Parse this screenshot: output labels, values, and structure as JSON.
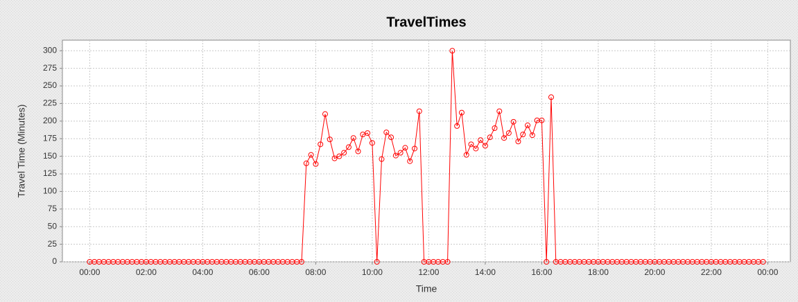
{
  "chart_data": {
    "type": "line",
    "title": "TravelTimes",
    "x_label": "Time",
    "y_label": "Travel Time (Minutes)",
    "x": [
      0,
      10,
      20,
      30,
      40,
      50,
      60,
      70,
      80,
      90,
      100,
      110,
      120,
      130,
      140,
      150,
      160,
      170,
      180,
      190,
      200,
      210,
      220,
      230,
      240,
      250,
      260,
      270,
      280,
      290,
      300,
      310,
      320,
      330,
      340,
      350,
      360,
      370,
      380,
      390,
      400,
      410,
      420,
      430,
      440,
      450,
      460,
      470,
      480,
      490,
      500,
      510,
      520,
      530,
      540,
      550,
      560,
      570,
      580,
      590,
      600,
      610,
      620,
      630,
      640,
      650,
      660,
      670,
      680,
      690,
      700,
      710,
      720,
      730,
      740,
      750,
      760,
      770,
      780,
      790,
      800,
      810,
      820,
      830,
      840,
      850,
      860,
      870,
      880,
      890,
      900,
      910,
      920,
      930,
      940,
      950,
      960,
      970,
      980,
      990,
      1000,
      1010,
      1020,
      1030,
      1040,
      1050,
      1060,
      1070,
      1080,
      1090,
      1100,
      1110,
      1120,
      1130,
      1140,
      1150,
      1160,
      1170,
      1180,
      1190,
      1200,
      1210,
      1220,
      1230,
      1240,
      1250,
      1260,
      1270,
      1280,
      1290,
      1300,
      1310,
      1320,
      1330,
      1340,
      1350,
      1360,
      1370,
      1380,
      1390,
      1400,
      1410,
      1420,
      1430
    ],
    "values": [
      0,
      0,
      0,
      0,
      0,
      0,
      0,
      0,
      0,
      0,
      0,
      0,
      0,
      0,
      0,
      0,
      0,
      0,
      0,
      0,
      0,
      0,
      0,
      0,
      0,
      0,
      0,
      0,
      0,
      0,
      0,
      0,
      0,
      0,
      0,
      0,
      0,
      0,
      0,
      0,
      0,
      0,
      0,
      0,
      0,
      0,
      140,
      152,
      139,
      167,
      210,
      174,
      147,
      150,
      155,
      163,
      176,
      157,
      181,
      183,
      169,
      0,
      146,
      184,
      177,
      151,
      155,
      162,
      143,
      161,
      214,
      0,
      0,
      0,
      0,
      0,
      0,
      300,
      193,
      212,
      152,
      167,
      161,
      173,
      165,
      177,
      190,
      214,
      176,
      183,
      199,
      171,
      181,
      194,
      180,
      201,
      201,
      0,
      234,
      0,
      0,
      0,
      0,
      0,
      0,
      0,
      0,
      0,
      0,
      0,
      0,
      0,
      0,
      0,
      0,
      0,
      0,
      0,
      0,
      0,
      0,
      0,
      0,
      0,
      0,
      0,
      0,
      0,
      0,
      0,
      0,
      0,
      0,
      0,
      0,
      0,
      0,
      0,
      0,
      0,
      0,
      0,
      0,
      0
    ],
    "color": "#ff0000",
    "xlim": [
      -58,
      1488
    ],
    "xticks": [
      {
        "value": 0,
        "label": "00:00"
      },
      {
        "value": 120,
        "label": "02:00"
      },
      {
        "value": 240,
        "label": "04:00"
      },
      {
        "value": 360,
        "label": "06:00"
      },
      {
        "value": 480,
        "label": "08:00"
      },
      {
        "value": 600,
        "label": "10:00"
      },
      {
        "value": 720,
        "label": "12:00"
      },
      {
        "value": 840,
        "label": "14:00"
      },
      {
        "value": 960,
        "label": "16:00"
      },
      {
        "value": 1080,
        "label": "18:00"
      },
      {
        "value": 1200,
        "label": "20:00"
      },
      {
        "value": 1320,
        "label": "22:00"
      },
      {
        "value": 1440,
        "label": "00:00"
      }
    ],
    "ylim": [
      0,
      315
    ],
    "yticks": [
      0,
      25,
      50,
      75,
      100,
      125,
      150,
      175,
      200,
      225,
      250,
      275,
      300
    ],
    "grid": true
  }
}
